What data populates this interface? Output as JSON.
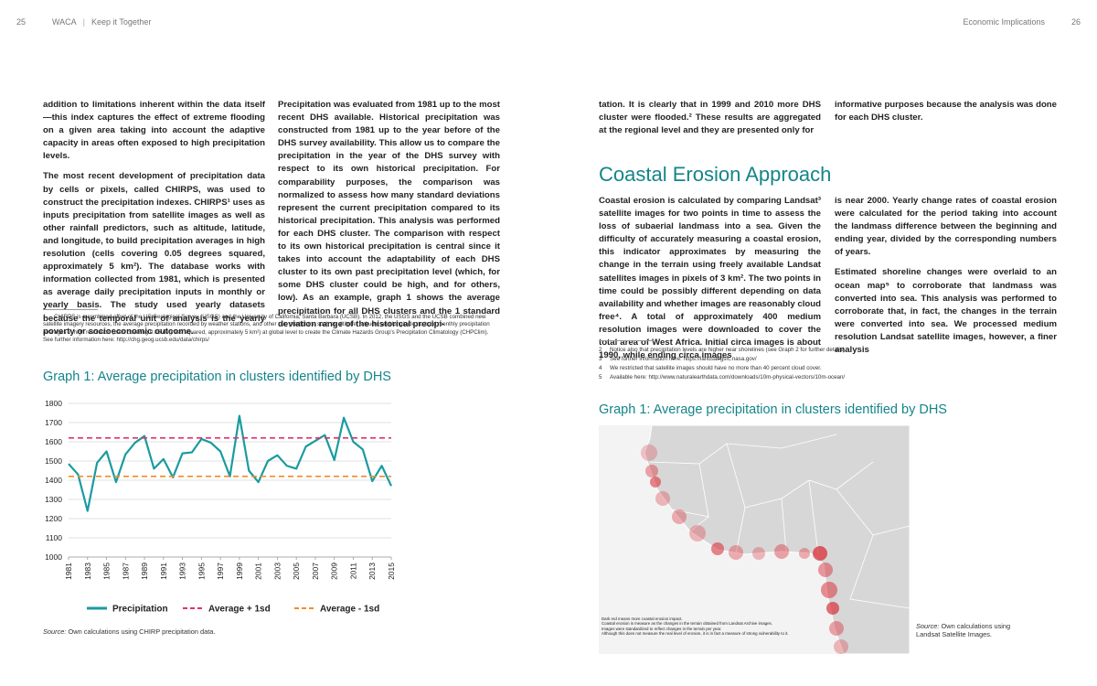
{
  "header": {
    "left_page": "25",
    "publication": "WACA",
    "section": "Keep it Together",
    "right_title": "Economic Implications",
    "right_page": "26"
  },
  "left": {
    "col1": [
      "addition to limitations inherent within the data itself—this index captures the effect of extreme flooding on a given area taking into account the adaptive capacity in areas often exposed to high precipitation levels.",
      "The most recent development of precipitation data by cells or pixels, called CHIRPS, was used to construct the precipitation indexes. CHIRPS¹ uses as inputs precipitation from satellite images as well as other rainfall predictors, such as altitude, latitude, and longitude, to build precipitation averages in high resolution (cells covering 0.05 degrees squared, approximately 5 km²). The database works with information collected from 1981, which is presented as average daily precipitation inputs in monthly or yearly basis. The study used yearly datasets because the temporal unit of analysis is the yearly poverty or socioeconomic outcome."
    ],
    "col2": [
      "Precipitation was evaluated from 1981 up to the most recent DHS available. Historical precipitation was constructed from 1981 up to the year before of the DHS survey availability. This allow us to compare the precipitation in the year of the DHS survey with respect to its own historical precipitation. For comparability purposes, the comparison was normalized to assess how many standard deviations represent the current precipitation compared to its historical precipitation. This analysis was performed for each DHS cluster. The comparison with respect to its own historical precipitation is central since it takes into account the adaptability of each DHS cluster to its own past precipitation level (which, for some DHS cluster could be high, and for others, low). As an example, graph 1 shows the average precipitation for all DHS clusters and the 1 standard deviation range of the historical precipi-"
    ],
    "footnotes": [
      {
        "num": "1",
        "text": "CHIRPS is a combined effort of the US Geological Survey (USGS) and the University of California, Santa Barbara (UCSB). In 2012, the USGS and the UCSB combined new satellite imagery resources, the average precipitation recorded by weather stations, and other rain predictors, such as altitude, latitude, and longitude, to build monthly precipitation averages in high resolution (cells covering 0.05 degrees squared, approximately 5 km²) at global level to create the Climate Hazards Group's Precipitation Climatology (CHPClim). See further information here: http://chg.geog.ucsb.edu/data/chirps/"
      }
    ],
    "source_label": "Source:",
    "source_text": " Own calculations using CHIRP precipitation data."
  },
  "chart_data": {
    "type": "line",
    "title": "Graph 1: Average precipitation in clusters identified by DHS",
    "x": [
      1981,
      1982,
      1983,
      1984,
      1985,
      1986,
      1987,
      1988,
      1989,
      1990,
      1991,
      1992,
      1993,
      1994,
      1995,
      1996,
      1997,
      1998,
      1999,
      2000,
      2001,
      2002,
      2003,
      2004,
      2005,
      2006,
      2007,
      2008,
      2009,
      2010,
      2011,
      2012,
      2013,
      2014,
      2015
    ],
    "series": [
      {
        "name": "Precipitation",
        "color": "#1a9ba0",
        "dash": "solid",
        "values": [
          1485,
          1430,
          1240,
          1490,
          1550,
          1390,
          1535,
          1595,
          1630,
          1460,
          1510,
          1415,
          1540,
          1545,
          1615,
          1595,
          1550,
          1420,
          1735,
          1450,
          1390,
          1500,
          1530,
          1475,
          1460,
          1575,
          1605,
          1635,
          1505,
          1725,
          1600,
          1560,
          1395,
          1475,
          1370
        ]
      },
      {
        "name": "Average + 1sd",
        "color": "#e0336b",
        "dash": "dashed",
        "values": [
          1620,
          1620,
          1620,
          1620,
          1620,
          1620,
          1620,
          1620,
          1620,
          1620,
          1620,
          1620,
          1620,
          1620,
          1620,
          1620,
          1620,
          1620,
          1620,
          1620,
          1620,
          1620,
          1620,
          1620,
          1620,
          1620,
          1620,
          1620,
          1620,
          1620,
          1620,
          1620,
          1620,
          1620,
          1620
        ]
      },
      {
        "name": "Average - 1sd",
        "color": "#f28c28",
        "dash": "dashed",
        "values": [
          1420,
          1420,
          1420,
          1420,
          1420,
          1420,
          1420,
          1420,
          1420,
          1420,
          1420,
          1420,
          1420,
          1420,
          1420,
          1420,
          1420,
          1420,
          1420,
          1420,
          1420,
          1420,
          1420,
          1420,
          1420,
          1420,
          1420,
          1420,
          1420,
          1420,
          1420,
          1420,
          1420,
          1420,
          1420
        ]
      }
    ],
    "xlim": [
      1981,
      2015
    ],
    "xticks": [
      1981,
      1983,
      1985,
      1987,
      1989,
      1991,
      1993,
      1995,
      1997,
      1999,
      2001,
      2003,
      2005,
      2007,
      2009,
      2011,
      2013,
      2015
    ],
    "ylim": [
      1000,
      1800
    ],
    "yticks": [
      1000,
      1100,
      1200,
      1300,
      1400,
      1500,
      1600,
      1700,
      1800
    ],
    "grid": true,
    "legend": "bottom"
  },
  "right": {
    "col1_top": "tation. It is clearly that in 1999 and 2010 more DHS cluster were flooded.² These results are aggregated at the regional level and they are presented only for",
    "col2_top": "informative purposes because the analysis was done for each DHS cluster.",
    "heading": "Coastal Erosion Approach",
    "col1": [
      "Coastal erosion is calculated by comparing Landsat³ satellite images for two points in time to assess the loss of subaerial landmass into a sea. Given the difficulty of accurately measuring a coastal erosion, this indicator approximates by measuring the change in the terrain using freely available Landsat satellites images in pixels of 3 km². The two points in time could be possibly different depending on data availability and whether images are reasonably cloud free⁴. A total of approximately 400 medium resolution images were downloaded to cover the total area of West Africa. Initial circa images is about 1990, while ending circa images"
    ],
    "col2": [
      "is near 2000. Yearly change rates of coastal erosion were calculated for the period taking into account the landmass difference between the beginning and ending year, divided by the corresponding numbers of years.",
      "Estimated shoreline changes were overlaid to an ocean map⁵ to corroborate that landmass was converted into sea. This analysis was performed to corroborate that, in fact, the changes in the terrain were converted into sea. We processed medium resolution Landsat satellite images, however, a finer analysis"
    ],
    "footnotes": [
      {
        "num": "2",
        "text": "Notice also that precipitation levels are higher near shorelines (see Graph 2 for further details)."
      },
      {
        "num": "3",
        "text": "See further information here: https://landsat.gsfc.nasa.gov/"
      },
      {
        "num": "4",
        "text": "We restricted that satellite images should have no more than 40 percent cloud cover."
      },
      {
        "num": "5",
        "text": "Available here: http://www.naturalearthdata.com/downloads/10m-physical-vectors/10m-ocean/"
      }
    ],
    "map": {
      "title": "Graph 1: Average precipitation in clusters identified by DHS",
      "notes": [
        "Dark red means more coastal erosion impact.",
        "Coastal erosion is measure as the changes in the terrain obtained from Landsat Archive images.",
        "Images were standardized to reflect changes in the terrain per year.",
        "Although this does not measure the real level of erosion, it is in fact a measure of strong vulnerability to it."
      ],
      "source_label": "Source:",
      "source_text": " Own calculations using Landsat Satellite Images."
    }
  }
}
